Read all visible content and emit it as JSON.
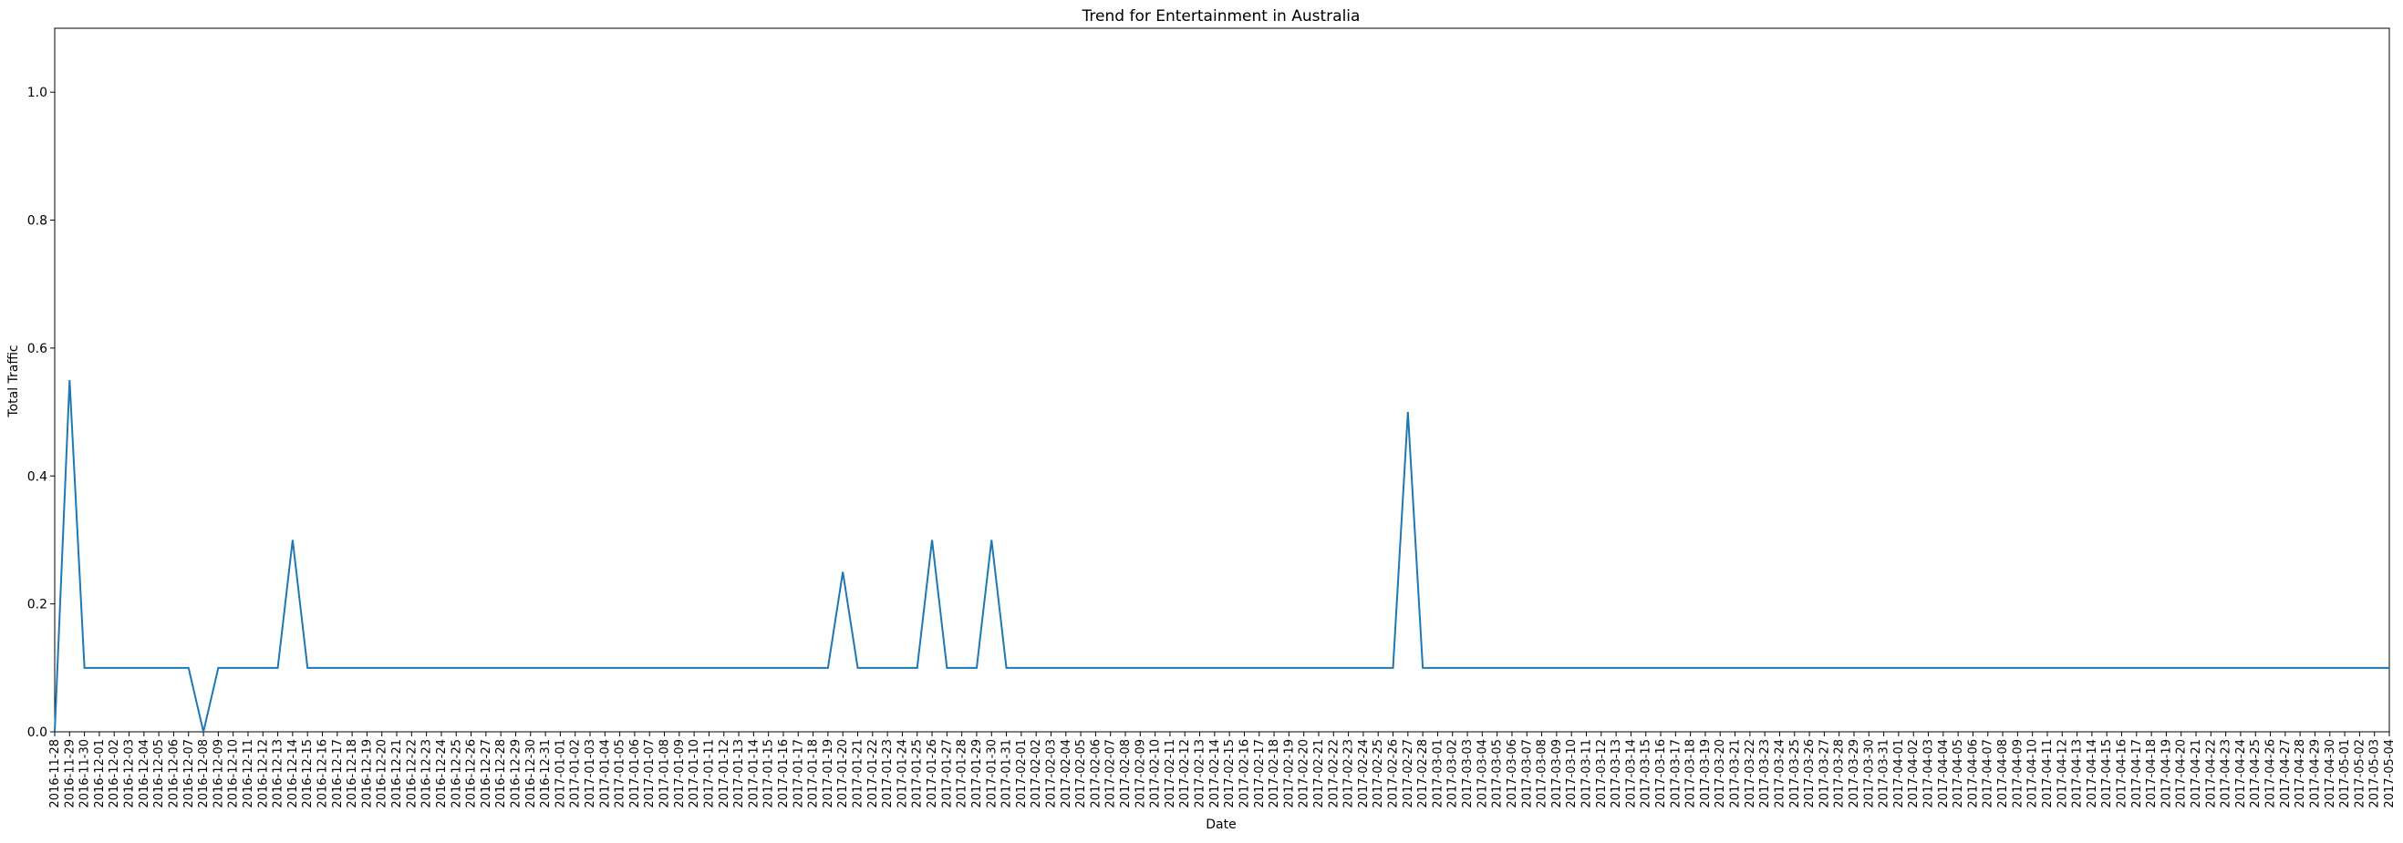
{
  "chart_data": {
    "type": "line",
    "title": "Trend for Entertainment in Australia",
    "xlabel": "Date",
    "ylabel": "Total Traffic",
    "ylim": [
      0,
      1.1
    ],
    "yticks": [
      "0.0",
      "0.2",
      "0.4",
      "0.6",
      "0.8",
      "1.0"
    ],
    "grid": false,
    "legend": "none",
    "line_color": "#1f77b4",
    "x_start": "2016-11-28",
    "x_end": "2017-05-04",
    "spikes": [
      {
        "date": "2016-11-28",
        "value": 0.0
      },
      {
        "date": "2016-11-29",
        "value": 0.55
      },
      {
        "date": "2016-12-08",
        "value": 0.0
      },
      {
        "date": "2016-12-14",
        "value": 0.3
      },
      {
        "date": "2017-01-20",
        "value": 0.25
      },
      {
        "date": "2017-01-26",
        "value": 0.3
      },
      {
        "date": "2017-01-30",
        "value": 0.3
      },
      {
        "date": "2017-02-27",
        "value": 0.5
      }
    ],
    "baseline_value": 0.1,
    "x": [],
    "values": []
  }
}
